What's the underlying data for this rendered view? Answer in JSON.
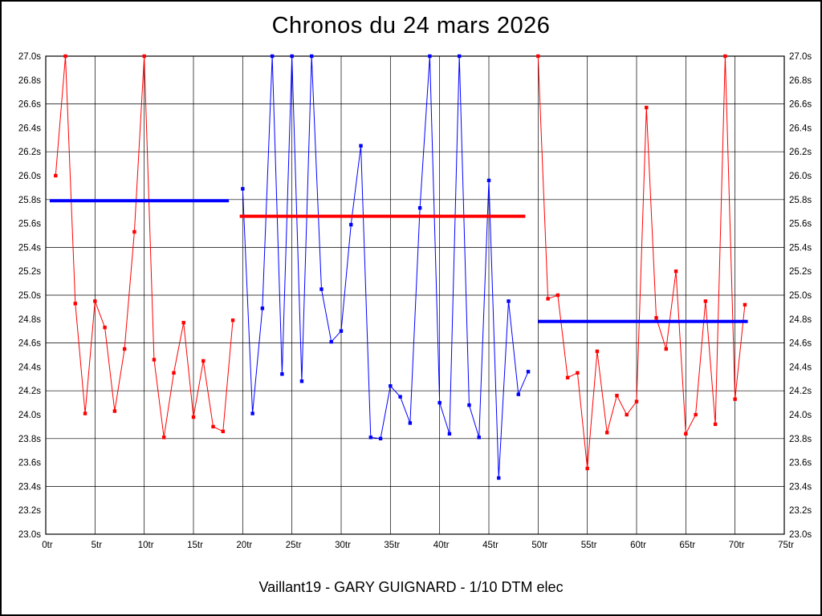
{
  "page": {
    "title": "Chronos du 24 mars 2026",
    "footer": "Vaillant19 - GARY GUIGNARD - 1/10 DTM elec"
  },
  "chart_data": {
    "type": "line",
    "title": "Chronos du 24 mars 2026",
    "footer_caption": "Vaillant19 - GARY GUIGNARD - 1/10 DTM elec",
    "x_unit": "tr",
    "y_unit": "s",
    "xlim": [
      0,
      75
    ],
    "ylim": [
      23.0,
      27.0
    ],
    "x_grid_step": 5,
    "y_grid_step": 0.4,
    "grid": true,
    "legend": "none",
    "colors": {
      "red": "#ff0000",
      "blue": "#0000ff",
      "grid": "#000000",
      "text": "#000000",
      "background": "#ffffff"
    },
    "xticks": [
      {
        "v": 0,
        "label": "0tr"
      },
      {
        "v": 5,
        "label": "5tr"
      },
      {
        "v": 10,
        "label": "10tr"
      },
      {
        "v": 15,
        "label": "15tr"
      },
      {
        "v": 20,
        "label": "20tr"
      },
      {
        "v": 25,
        "label": "25tr"
      },
      {
        "v": 30,
        "label": "30tr"
      },
      {
        "v": 35,
        "label": "35tr"
      },
      {
        "v": 40,
        "label": "40tr"
      },
      {
        "v": 45,
        "label": "45tr"
      },
      {
        "v": 50,
        "label": "50tr"
      },
      {
        "v": 55,
        "label": "55tr"
      },
      {
        "v": 60,
        "label": "60tr"
      },
      {
        "v": 65,
        "label": "65tr"
      },
      {
        "v": 70,
        "label": "70tr"
      },
      {
        "v": 75,
        "label": "75tr"
      }
    ],
    "yticks": [
      {
        "v": 23.0,
        "label": "23.0s"
      },
      {
        "v": 23.2,
        "label": "23.2s"
      },
      {
        "v": 23.4,
        "label": "23.4s"
      },
      {
        "v": 23.6,
        "label": "23.6s"
      },
      {
        "v": 23.8,
        "label": "23.8s"
      },
      {
        "v": 24.0,
        "label": "24.0s"
      },
      {
        "v": 24.2,
        "label": "24.2s"
      },
      {
        "v": 24.4,
        "label": "24.4s"
      },
      {
        "v": 24.6,
        "label": "24.6s"
      },
      {
        "v": 24.8,
        "label": "24.8s"
      },
      {
        "v": 25.0,
        "label": "25.0s"
      },
      {
        "v": 25.2,
        "label": "25.2s"
      },
      {
        "v": 25.4,
        "label": "25.4s"
      },
      {
        "v": 25.6,
        "label": "25.6s"
      },
      {
        "v": 25.8,
        "label": "25.8s"
      },
      {
        "v": 26.0,
        "label": "26.0s"
      },
      {
        "v": 26.2,
        "label": "26.2s"
      },
      {
        "v": 26.4,
        "label": "26.4s"
      },
      {
        "v": 26.6,
        "label": "26.6s"
      },
      {
        "v": 26.8,
        "label": "26.8s"
      },
      {
        "v": 27.0,
        "label": "27.0s"
      }
    ],
    "series": [
      {
        "name": "heat-1",
        "color": "#ff0000",
        "marker": "square",
        "start_x": 1,
        "values": [
          26.0,
          27.0,
          24.93,
          24.01,
          24.95,
          24.73,
          24.03,
          24.55,
          25.53,
          27.0,
          24.46,
          23.81,
          24.35,
          24.77,
          23.98,
          24.45,
          23.9,
          23.86,
          24.79
        ]
      },
      {
        "name": "heat-2",
        "color": "#0000ff",
        "marker": "square",
        "start_x": 20,
        "values": [
          25.89,
          24.01,
          24.89,
          27.0,
          24.34,
          27.0,
          24.28,
          27.0,
          25.05,
          24.61,
          24.7,
          25.59,
          26.25,
          23.81,
          23.8,
          24.24,
          24.15,
          23.93,
          25.73,
          27.0,
          24.1,
          23.84,
          27.0,
          24.08,
          23.81,
          25.96,
          23.47,
          24.95,
          24.17,
          24.36
        ]
      },
      {
        "name": "heat-3",
        "color": "#ff0000",
        "marker": "square",
        "start_x": 50,
        "values": [
          27.0,
          24.97,
          25.0,
          24.31,
          24.35,
          23.55,
          24.53,
          23.85,
          24.16,
          24.0,
          24.11,
          26.57,
          24.81,
          24.55,
          25.2,
          23.84,
          24.0,
          24.95,
          23.92,
          27.0,
          24.13,
          24.92
        ]
      }
    ],
    "average_lines": [
      {
        "name": "average-line-heat-1",
        "color": "#0000ff",
        "value": 25.79,
        "x_from": 0.4,
        "x_to": 18.6
      },
      {
        "name": "average-line-heat-2",
        "color": "#ff0000",
        "value": 25.66,
        "x_from": 19.7,
        "x_to": 48.7
      },
      {
        "name": "average-line-heat-3",
        "color": "#0000ff",
        "value": 24.78,
        "x_from": 50.0,
        "x_to": 71.3
      }
    ]
  }
}
